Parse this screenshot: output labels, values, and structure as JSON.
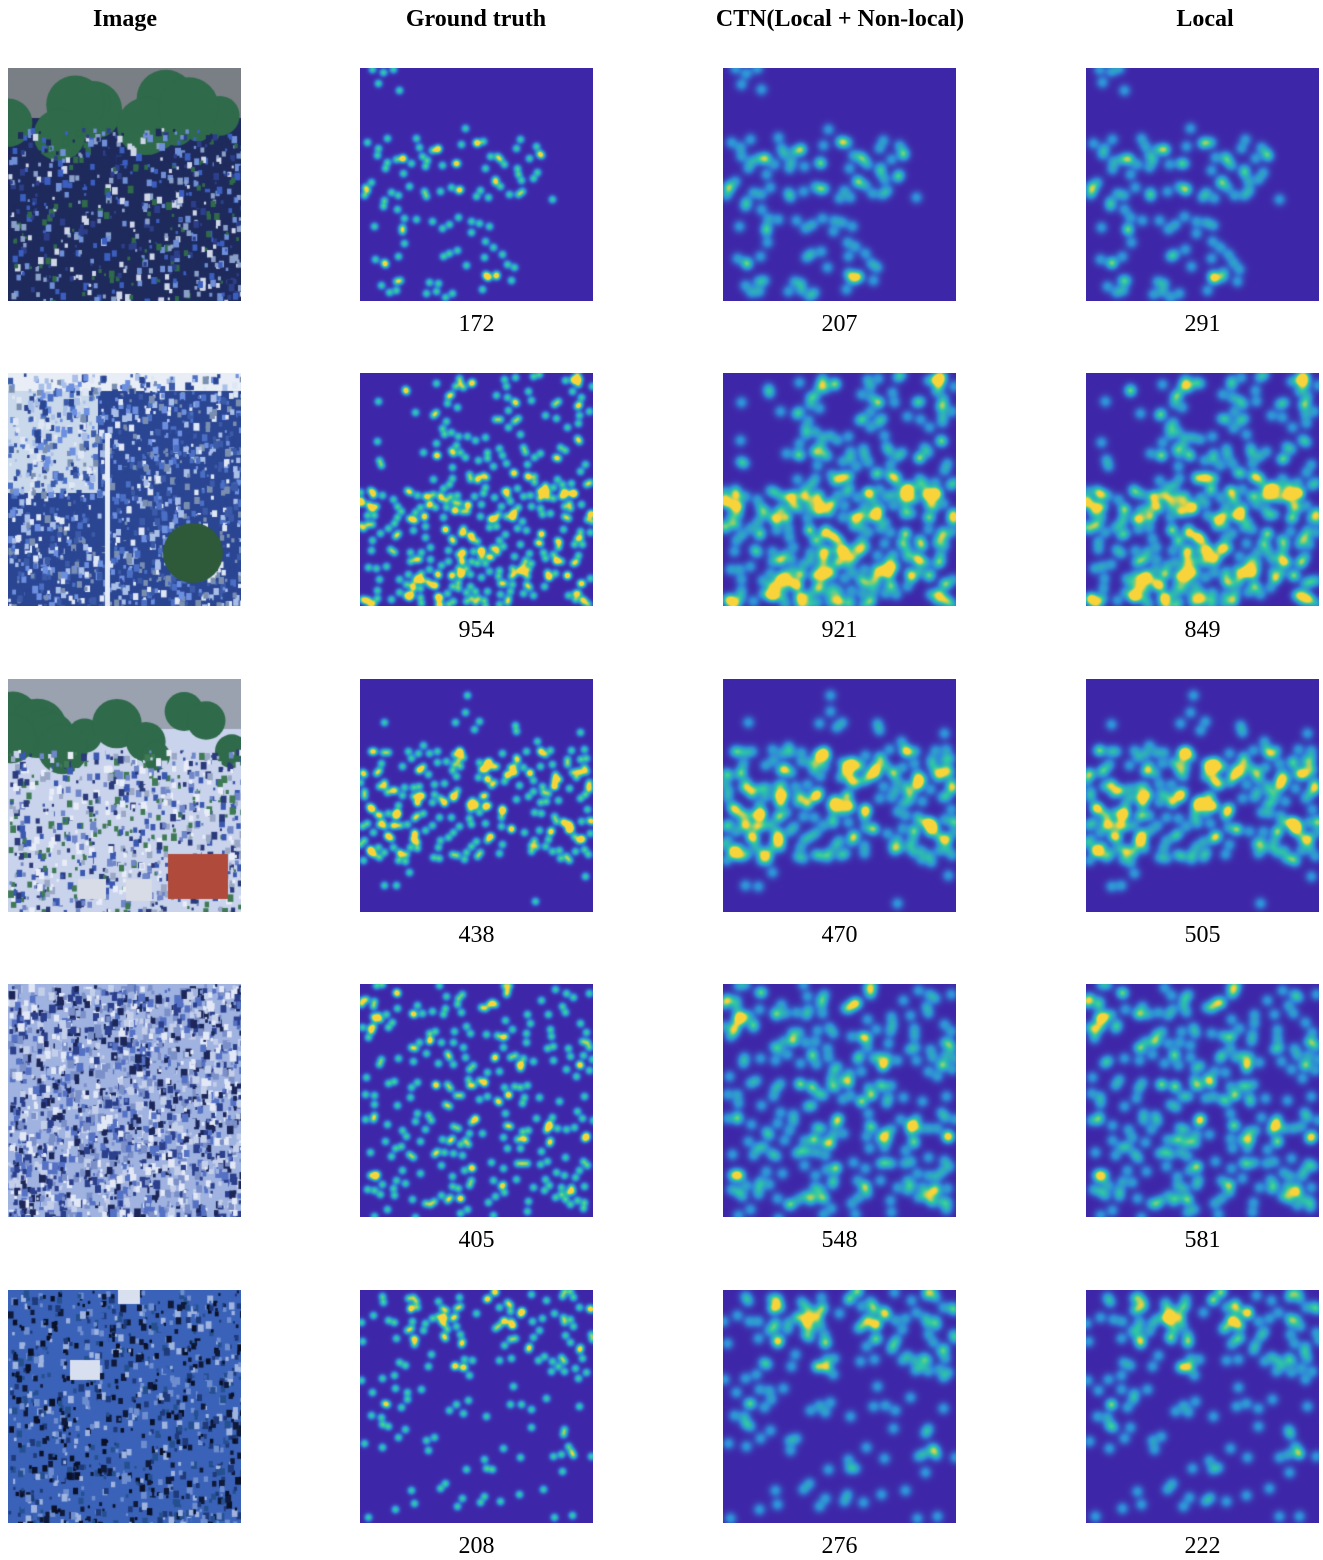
{
  "headers": {
    "image": "Image",
    "ground_truth": "Ground truth",
    "ctn": "CTN(Local + Non-local)",
    "local": "Local"
  },
  "rows": [
    {
      "image": "street crowd photo with trees and buildings",
      "counts": {
        "ground_truth": "172",
        "ctn": "207",
        "local": "291"
      }
    },
    {
      "image": "dense crowd on plaza with palm tree and signs",
      "counts": {
        "ground_truth": "954",
        "ctn": "921",
        "local": "849"
      }
    },
    {
      "image": "pedestrian crossing with buses and trees",
      "counts": {
        "ground_truth": "438",
        "ctn": "470",
        "local": "505"
      }
    },
    {
      "image": "extremely dense top-down crowd",
      "counts": {
        "ground_truth": "405",
        "ctn": "548",
        "local": "581"
      }
    },
    {
      "image": "night crowd with flags and banners",
      "counts": {
        "ground_truth": "208",
        "ctn": "276",
        "local": "222"
      }
    }
  ],
  "colors": {
    "density_background": "#3e26a8",
    "density_low": "#2f8ad9",
    "density_mid": "#2ec9a4",
    "density_high": "#f9d33a"
  }
}
